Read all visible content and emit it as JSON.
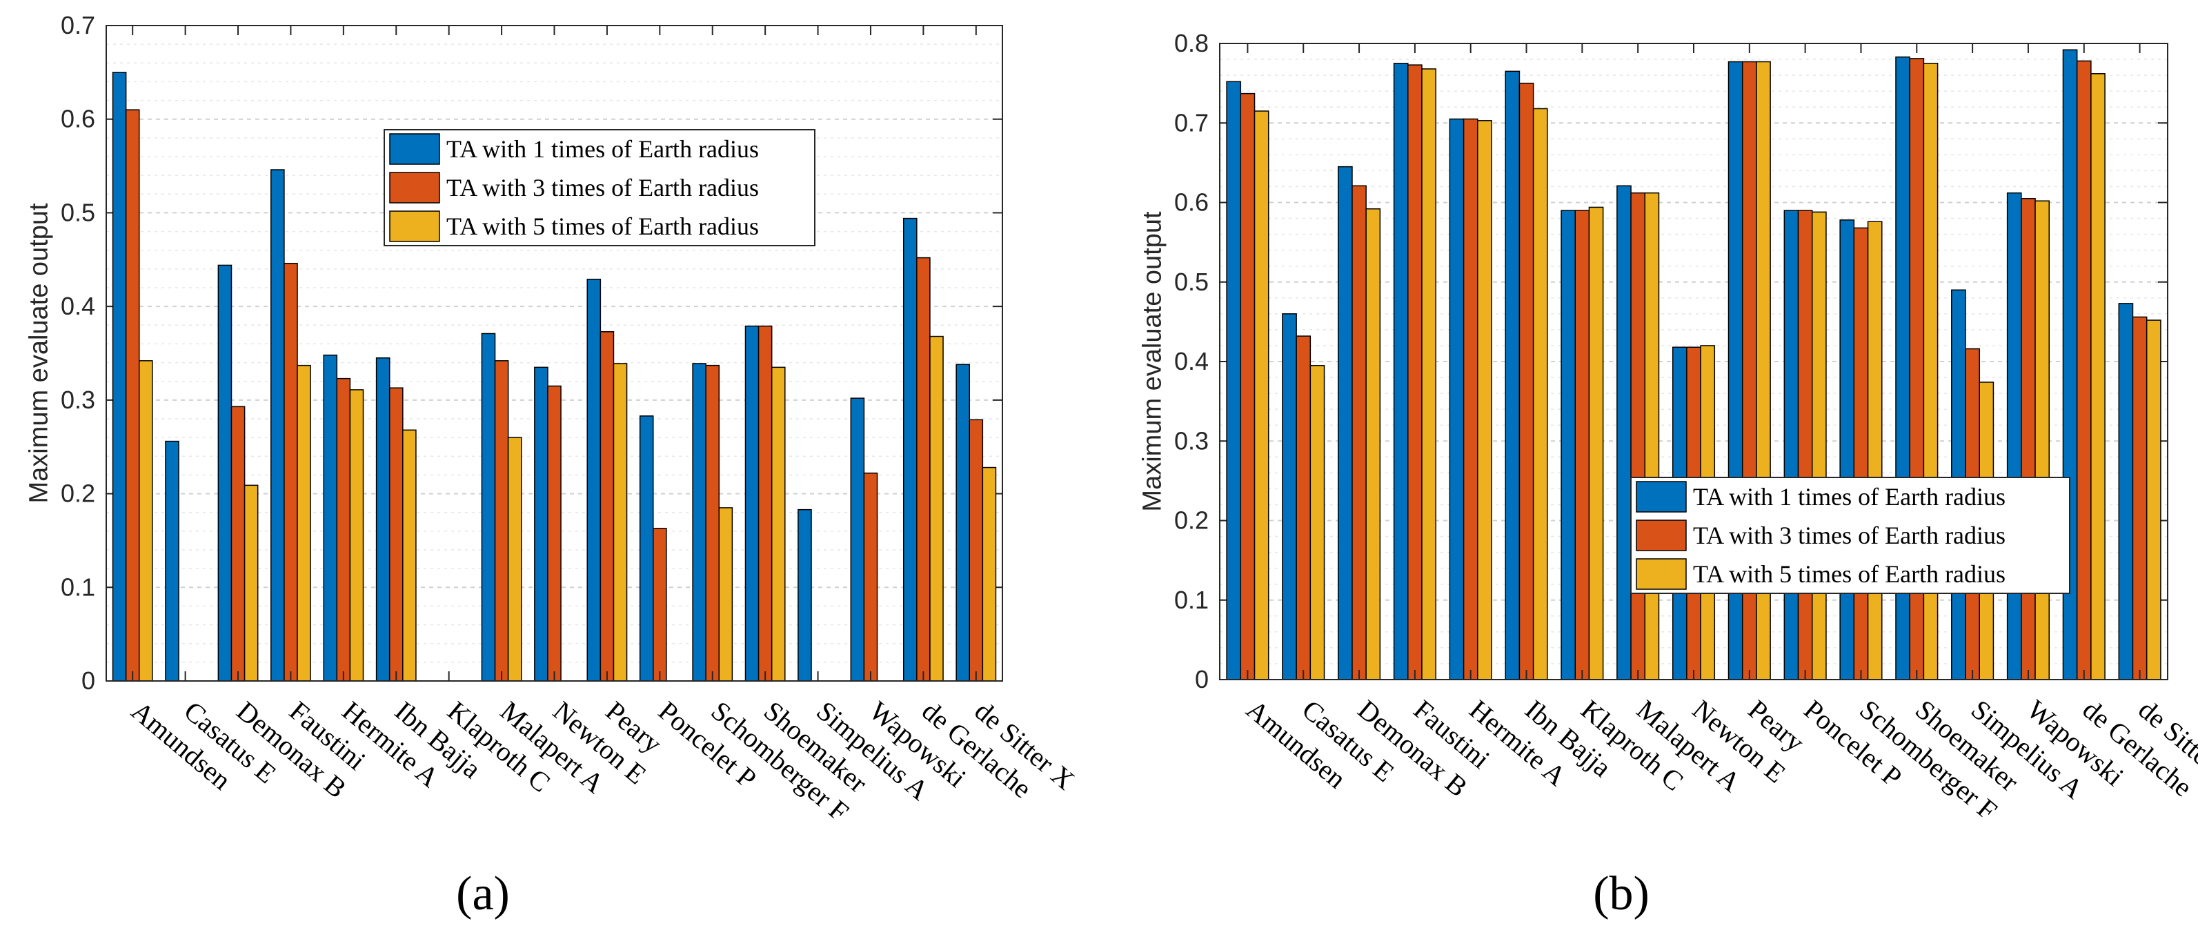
{
  "chart_data": [
    {
      "type": "bar",
      "panel_label": "(a)",
      "ylabel": "Maximum evaluate output",
      "ylim": [
        0,
        0.7
      ],
      "yticks": [
        "0",
        "0.1",
        "0.2",
        "0.3",
        "0.4",
        "0.5",
        "0.6",
        "0.7"
      ],
      "grid": true,
      "legend_position": "upper-center",
      "categories": [
        "Amundsen",
        "Casatus E",
        "Demonax B",
        "Faustini",
        "Hermite A",
        "Ibn Bajja",
        "Klaproth C",
        "Malapert A",
        "Newton E",
        "Peary",
        "Poncelet P",
        "Schomberger F",
        "Shoemaker",
        "Simpelius A",
        "Wapowski",
        "de Gerlache",
        "de Sitter X"
      ],
      "series": [
        {
          "name": "TA with 1 times of Earth radius",
          "color": "#0072BD",
          "values": [
            0.65,
            0.256,
            0.444,
            0.546,
            0.348,
            0.345,
            0,
            0.371,
            0.335,
            0.429,
            0.283,
            0.339,
            0.379,
            0.183,
            0.302,
            0.494,
            0.338
          ]
        },
        {
          "name": "TA with 3 times of Earth radius",
          "color": "#D95319",
          "values": [
            0.61,
            0,
            0.293,
            0.446,
            0.323,
            0.313,
            0,
            0.342,
            0.315,
            0.373,
            0.163,
            0.337,
            0.379,
            0,
            0.222,
            0.452,
            0.279
          ]
        },
        {
          "name": "TA with 5 times of Earth radius",
          "color": "#EDB120",
          "values": [
            0.342,
            0,
            0.209,
            0.337,
            0.311,
            0.268,
            0,
            0.26,
            0,
            0.339,
            0,
            0.185,
            0.335,
            0,
            0,
            0.368,
            0.228
          ]
        }
      ]
    },
    {
      "type": "bar",
      "panel_label": "(b)",
      "ylabel": "Maximum evaluate output",
      "ylim": [
        0,
        0.8
      ],
      "yticks": [
        "0",
        "0.1",
        "0.2",
        "0.3",
        "0.4",
        "0.5",
        "0.6",
        "0.7",
        "0.8"
      ],
      "grid": true,
      "legend_position": "lower-right",
      "categories": [
        "Amundsen",
        "Casatus E",
        "Demonax B",
        "Faustini",
        "Hermite A",
        "Ibn Bajja",
        "Klaproth C",
        "Malapert A",
        "Newton E",
        "Peary",
        "Poncelet P",
        "Schomberger F",
        "Shoemaker",
        "Simpelius A",
        "Wapowski",
        "de Gerlache",
        "de Sitter X"
      ],
      "series": [
        {
          "name": "TA with 1 times of Earth radius",
          "color": "#0072BD",
          "values": [
            0.752,
            0.46,
            0.645,
            0.775,
            0.705,
            0.765,
            0.59,
            0.621,
            0.418,
            0.777,
            0.59,
            0.578,
            0.783,
            0.49,
            0.612,
            0.792,
            0.473
          ]
        },
        {
          "name": "TA with 3 times of Earth radius",
          "color": "#D95319",
          "values": [
            0.737,
            0.432,
            0.621,
            0.773,
            0.705,
            0.75,
            0.59,
            0.612,
            0.418,
            0.777,
            0.59,
            0.568,
            0.781,
            0.416,
            0.605,
            0.778,
            0.456
          ]
        },
        {
          "name": "TA with 5 times of Earth radius",
          "color": "#EDB120",
          "values": [
            0.715,
            0.395,
            0.592,
            0.768,
            0.703,
            0.718,
            0.594,
            0.612,
            0.42,
            0.777,
            0.588,
            0.576,
            0.775,
            0.374,
            0.602,
            0.762,
            0.452
          ]
        }
      ]
    }
  ]
}
